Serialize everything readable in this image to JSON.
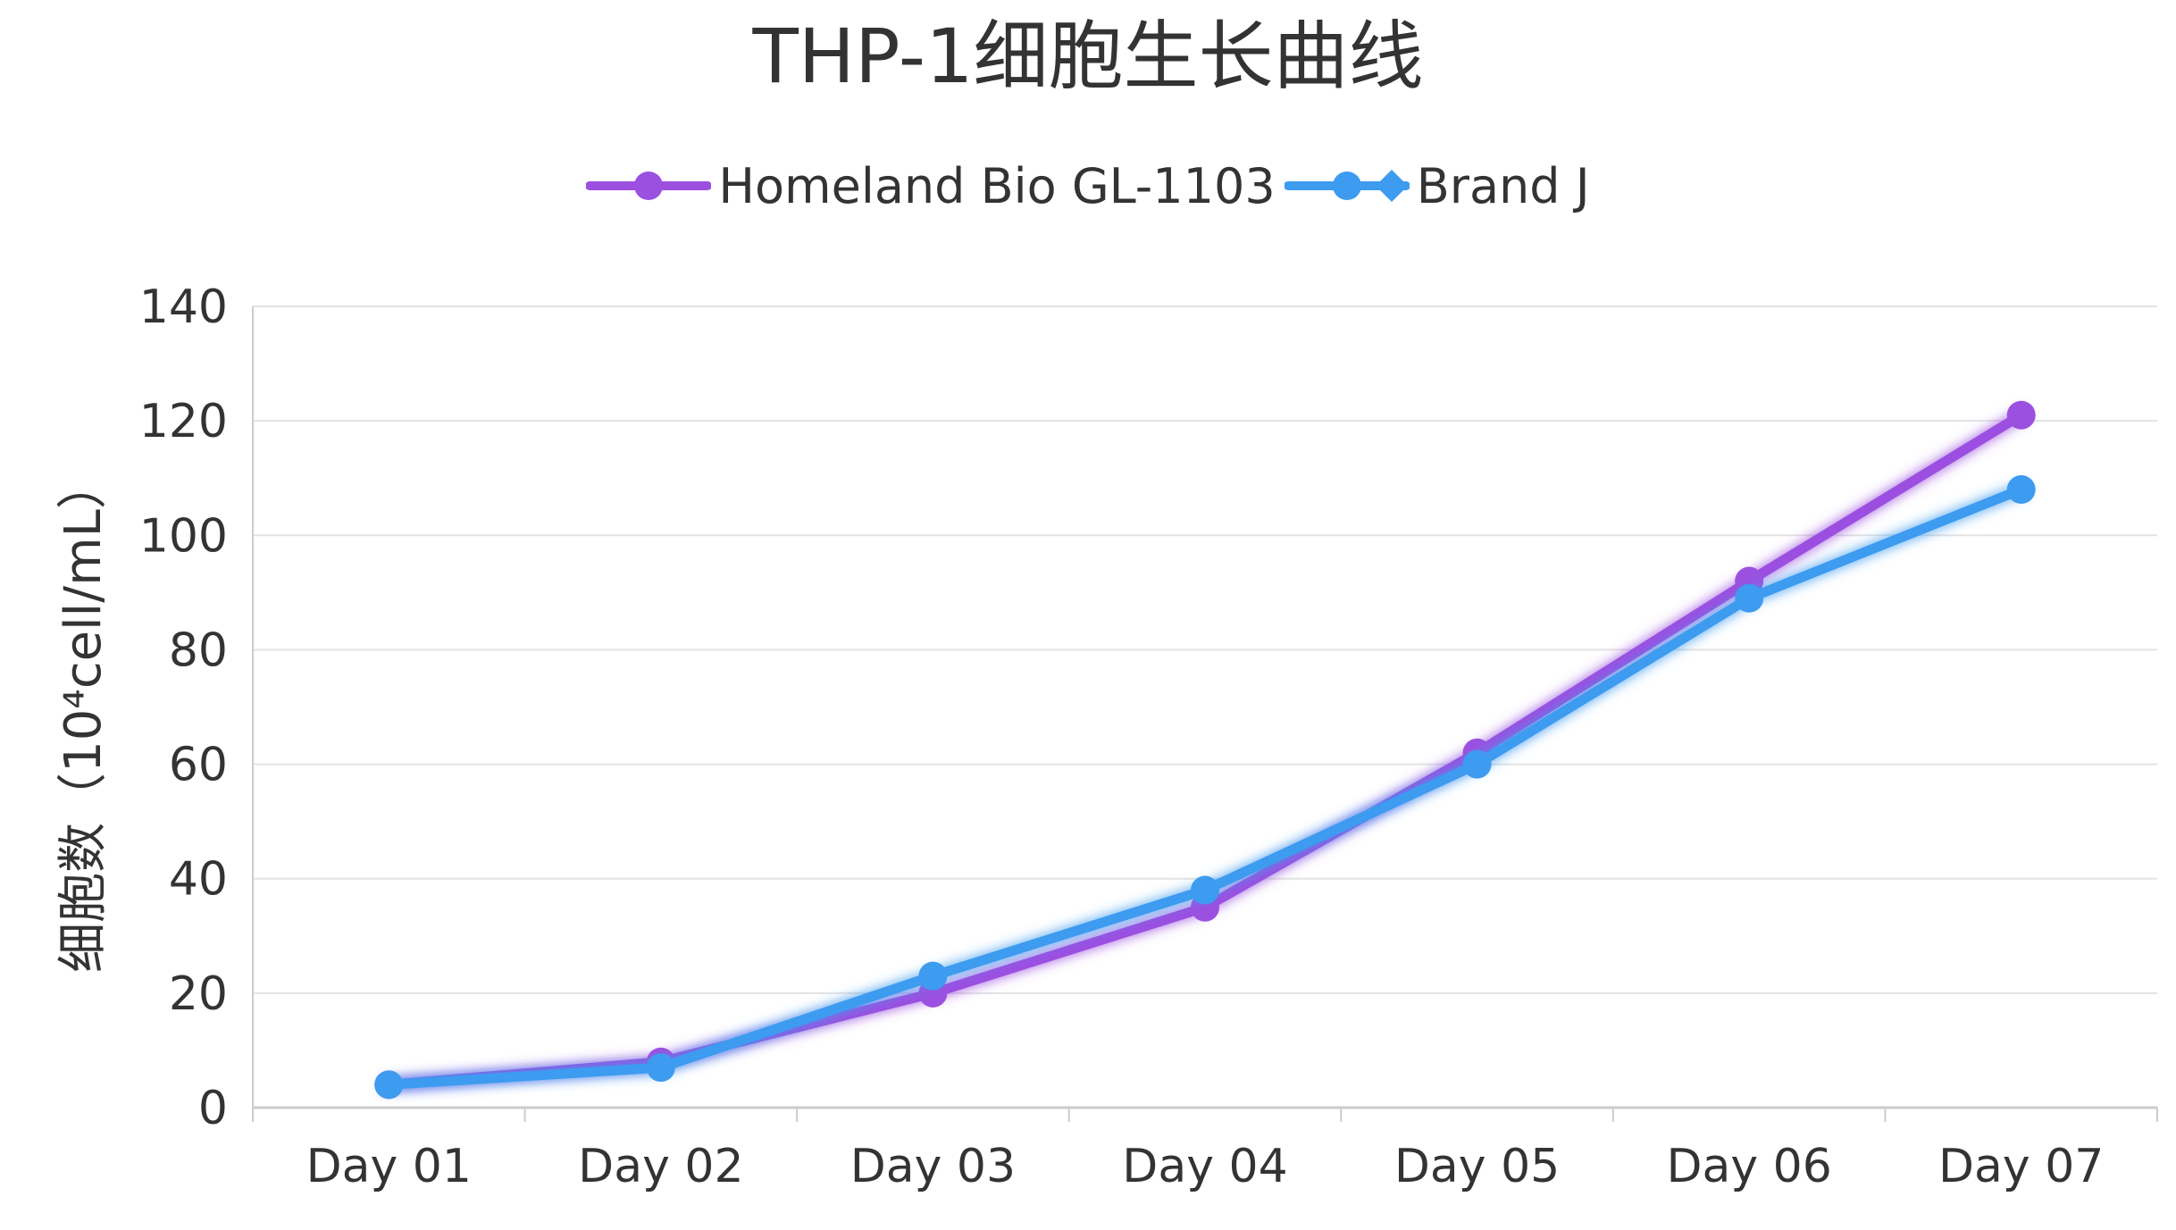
{
  "chart_data": {
    "type": "line",
    "title": "THP-1细胞生长曲线",
    "xlabel": "",
    "ylabel": "细胞数（10⁴cell/mL）",
    "categories": [
      "Day 01",
      "Day 02",
      "Day 03",
      "Day 04",
      "Day 05",
      "Day 06",
      "Day 07"
    ],
    "ylim": [
      0,
      140
    ],
    "yticks": [
      0,
      20,
      40,
      60,
      80,
      100,
      120,
      140
    ],
    "grid": true,
    "legend_position": "top-center",
    "series": [
      {
        "name": "Homeland Bio GL-1103",
        "values": [
          4,
          8,
          20,
          35,
          62,
          92,
          121
        ],
        "color": "#9b50e0",
        "marker": "circle"
      },
      {
        "name": "Brand J",
        "values": [
          4,
          7,
          23,
          38,
          60,
          89,
          108
        ],
        "color": "#3d9bf0",
        "marker": "diamond"
      }
    ]
  }
}
